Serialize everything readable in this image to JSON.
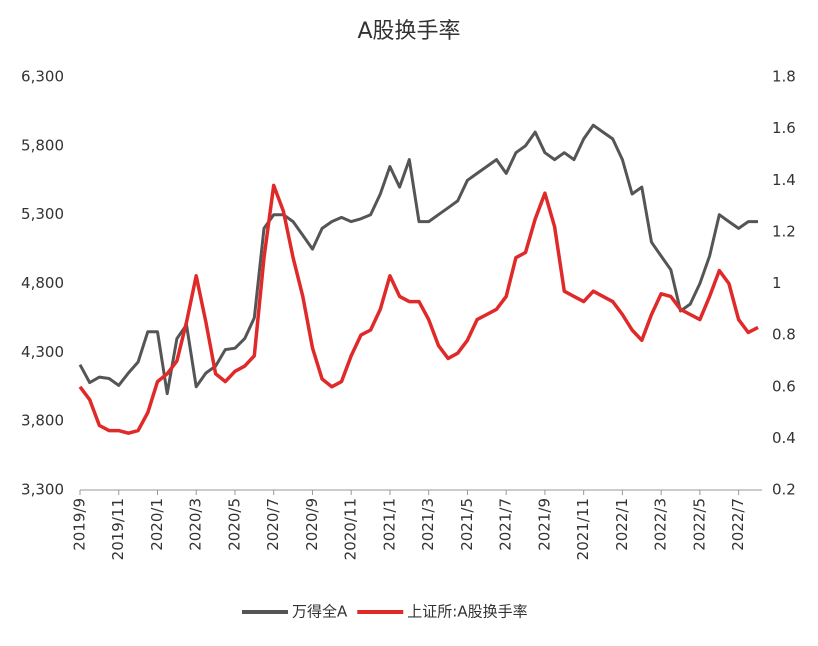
{
  "chart_data": {
    "type": "line",
    "title": "A股换手率",
    "categories": [
      "2019/9",
      null,
      null,
      null,
      "2019/11",
      null,
      null,
      null,
      "2020/1",
      null,
      null,
      null,
      "2020/3",
      null,
      null,
      null,
      "2020/5",
      null,
      null,
      null,
      "2020/7",
      null,
      null,
      null,
      "2020/9",
      null,
      null,
      null,
      "2020/11",
      null,
      null,
      null,
      "2021/1",
      null,
      null,
      null,
      "2021/3",
      null,
      null,
      null,
      "2021/5",
      null,
      null,
      null,
      "2021/7",
      null,
      null,
      null,
      "2021/9",
      null,
      null,
      null,
      "2021/11",
      null,
      null,
      null,
      "2022/1",
      null,
      null,
      null,
      "2022/3",
      null,
      null,
      null,
      "2022/5",
      null,
      null,
      null,
      "2022/7",
      null,
      null
    ],
    "series": [
      {
        "name": "万得全A",
        "color": "#555555",
        "values": [
          4210,
          4080,
          4120,
          4110,
          4060,
          4150,
          4230,
          4450,
          4450,
          4000,
          4400,
          4500,
          4050,
          4150,
          4200,
          4320,
          4330,
          4400,
          4550,
          5200,
          5300,
          5300,
          5250,
          5150,
          5050,
          5200,
          5250,
          5280,
          5250,
          5270,
          5300,
          5450,
          5650,
          5500,
          5700,
          5250,
          5250,
          5300,
          5350,
          5400,
          5550,
          5600,
          5650,
          5700,
          5600,
          5750,
          5800,
          5900,
          5750,
          5700,
          5750,
          5700,
          5850,
          5950,
          5900,
          5850,
          5700,
          5450,
          5500,
          5100,
          5000,
          4900,
          4600,
          4650,
          4800,
          5000,
          5300,
          5250,
          5200,
          5250,
          5250
        ]
      },
      {
        "name": "上证所:A股换手率",
        "color": "#e02a2a",
        "axis": "y2",
        "values": [
          0.6,
          0.55,
          0.45,
          0.43,
          0.43,
          0.42,
          0.43,
          0.5,
          0.62,
          0.65,
          0.7,
          0.85,
          1.03,
          0.85,
          0.65,
          0.62,
          0.66,
          0.68,
          0.72,
          1.1,
          1.38,
          1.28,
          1.1,
          0.95,
          0.75,
          0.63,
          0.6,
          0.62,
          0.72,
          0.8,
          0.82,
          0.9,
          1.03,
          0.95,
          0.93,
          0.93,
          0.86,
          0.76,
          0.71,
          0.73,
          0.78,
          0.86,
          0.88,
          0.9,
          0.95,
          1.1,
          1.12,
          1.25,
          1.35,
          1.22,
          0.97,
          0.95,
          0.93,
          0.97,
          0.95,
          0.93,
          0.88,
          0.82,
          0.78,
          0.88,
          0.96,
          0.95,
          0.9,
          0.88,
          0.86,
          0.95,
          1.05,
          1.0,
          0.86,
          0.81,
          0.83
        ]
      }
    ],
    "ylim": [
      3300,
      6300
    ],
    "yticks": [
      {
        "value": 3300,
        "label": "3,300"
      },
      {
        "value": 3800,
        "label": "3,800"
      },
      {
        "value": 4300,
        "label": "4,300"
      },
      {
        "value": 4800,
        "label": "4,800"
      },
      {
        "value": 5300,
        "label": "5,300"
      },
      {
        "value": 5800,
        "label": "5,800"
      },
      {
        "value": 6300,
        "label": "6,300"
      }
    ],
    "y2lim": [
      0.2,
      1.8
    ],
    "y2ticks": [
      0.2,
      0.4,
      0.6,
      0.8,
      1,
      1.2,
      1.4,
      1.6,
      1.8
    ],
    "legend": "bottom",
    "grid": false
  }
}
